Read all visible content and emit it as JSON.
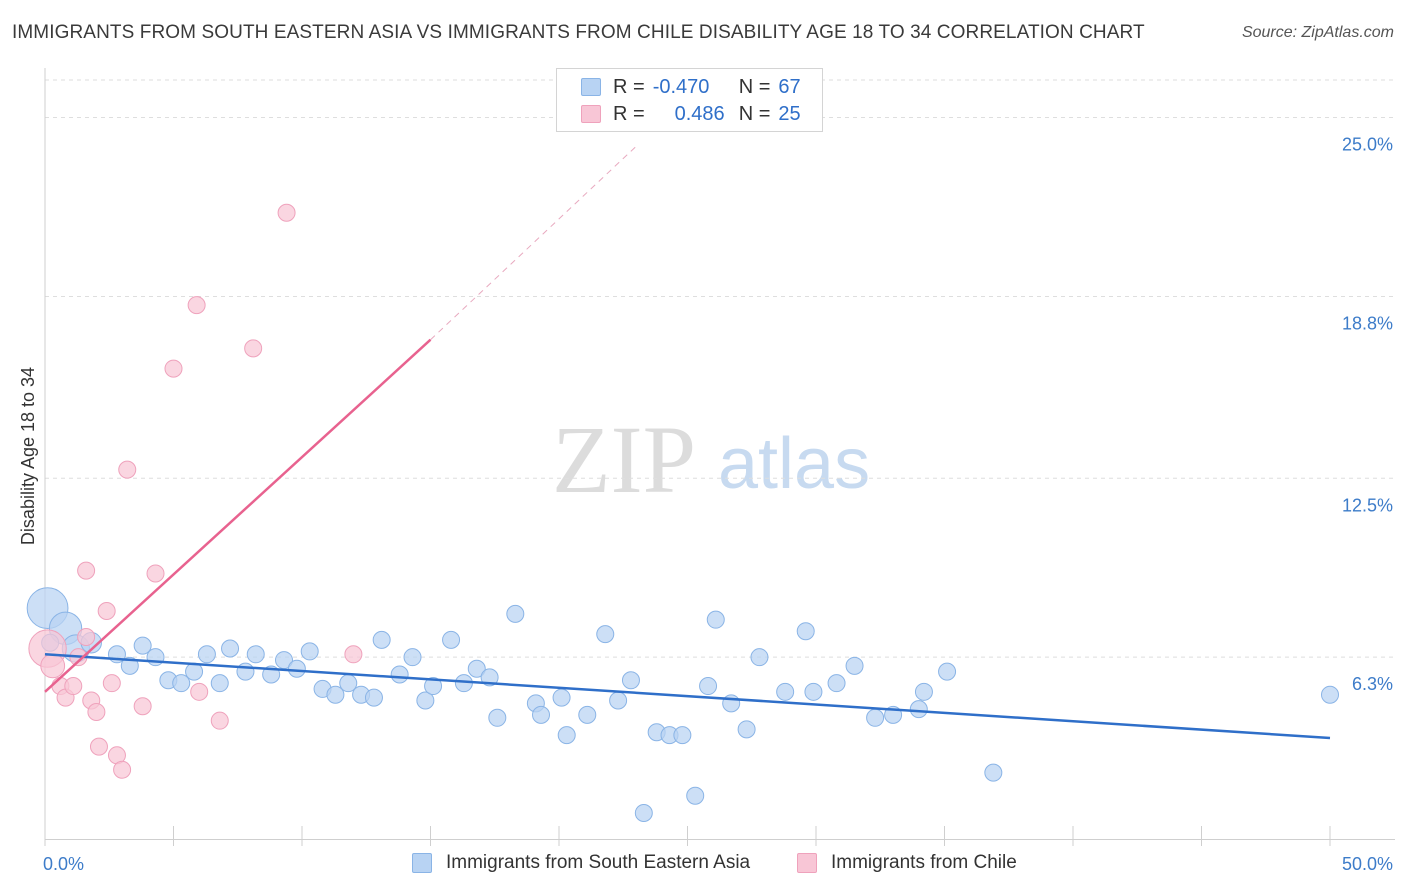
{
  "title": "IMMIGRANTS FROM SOUTH EASTERN ASIA VS IMMIGRANTS FROM CHILE DISABILITY AGE 18 TO 34 CORRELATION CHART",
  "source": "Source: ZipAtlas.com",
  "watermark": {
    "zip": "ZIP",
    "atlas": "atlas"
  },
  "legend": {
    "rows": [
      {
        "r_label": "R =",
        "r_value": "-0.470",
        "n_label": "N =",
        "n_value": "67"
      },
      {
        "r_label": "R =",
        "r_value": "0.486",
        "n_label": "N =",
        "n_value": "25"
      }
    ]
  },
  "colors": {
    "series1_fill": "#b8d3f3",
    "series1_stroke": "#8ab4e6",
    "series1_line": "#2f6fc9",
    "series2_fill": "#f8c6d6",
    "series2_stroke": "#efa2bc",
    "series2_line": "#e8628f",
    "grid": "#dedede",
    "axis_label": "#3d7cc9"
  },
  "chart_data": {
    "type": "scatter",
    "title": "IMMIGRANTS FROM SOUTH EASTERN ASIA VS IMMIGRANTS FROM CHILE DISABILITY AGE 18 TO 34 CORRELATION CHART",
    "xlabel": "",
    "ylabel": "Disability Age 18 to 34",
    "xlim": [
      0,
      50
    ],
    "ylim": [
      0,
      26.3
    ],
    "x_tick_labels": [
      "0.0%",
      "50.0%"
    ],
    "y_ticks": [
      6.3,
      12.5,
      18.8,
      25.0
    ],
    "y_tick_labels": [
      "6.3%",
      "12.5%",
      "18.8%",
      "25.0%"
    ],
    "grid": true,
    "legend_placement": "bottom",
    "series": [
      {
        "name": "Immigrants from South Eastern Asia",
        "R": -0.47,
        "N": 67,
        "trend": {
          "x": [
            0,
            50
          ],
          "y": [
            6.4,
            3.5
          ]
        },
        "points": [
          [
            0.1,
            8.0,
            2.4
          ],
          [
            0.8,
            7.3,
            1.9
          ],
          [
            1.2,
            6.6,
            1.6
          ],
          [
            1.8,
            6.8,
            1.2
          ],
          [
            2.8,
            6.4,
            1
          ],
          [
            3.3,
            6.0,
            1
          ],
          [
            3.8,
            6.7,
            1
          ],
          [
            4.3,
            6.3,
            1
          ],
          [
            4.8,
            5.5,
            1
          ],
          [
            5.3,
            5.4,
            1
          ],
          [
            5.8,
            5.8,
            1
          ],
          [
            6.3,
            6.4,
            1
          ],
          [
            6.8,
            5.4,
            1
          ],
          [
            7.2,
            6.6,
            1
          ],
          [
            7.8,
            5.8,
            1
          ],
          [
            8.2,
            6.4,
            1
          ],
          [
            8.8,
            5.7,
            1
          ],
          [
            9.3,
            6.2,
            1
          ],
          [
            9.8,
            5.9,
            1
          ],
          [
            10.3,
            6.5,
            1
          ],
          [
            10.8,
            5.2,
            1
          ],
          [
            11.3,
            5.0,
            1
          ],
          [
            11.8,
            5.4,
            1
          ],
          [
            12.3,
            5.0,
            1
          ],
          [
            12.8,
            4.9,
            1
          ],
          [
            13.1,
            6.9,
            1
          ],
          [
            13.8,
            5.7,
            1
          ],
          [
            14.3,
            6.3,
            1
          ],
          [
            14.8,
            4.8,
            1
          ],
          [
            15.1,
            5.3,
            1
          ],
          [
            15.8,
            6.9,
            1
          ],
          [
            16.3,
            5.4,
            1
          ],
          [
            16.8,
            5.9,
            1
          ],
          [
            17.3,
            5.6,
            1
          ],
          [
            17.6,
            4.2,
            1
          ],
          [
            18.3,
            7.8,
            1
          ],
          [
            19.1,
            4.7,
            1
          ],
          [
            19.3,
            4.3,
            1
          ],
          [
            20.1,
            4.9,
            1
          ],
          [
            20.3,
            3.6,
            1
          ],
          [
            21.1,
            4.3,
            1
          ],
          [
            21.8,
            7.1,
            1
          ],
          [
            22.3,
            4.8,
            1
          ],
          [
            22.8,
            5.5,
            1
          ],
          [
            23.3,
            0.9,
            1
          ],
          [
            23.8,
            3.7,
            1
          ],
          [
            24.3,
            3.6,
            1
          ],
          [
            24.8,
            3.6,
            1
          ],
          [
            25.3,
            1.5,
            1
          ],
          [
            25.8,
            5.3,
            1
          ],
          [
            26.1,
            7.6,
            1
          ],
          [
            26.7,
            4.7,
            1
          ],
          [
            27.3,
            3.8,
            1
          ],
          [
            27.8,
            6.3,
            1
          ],
          [
            28.8,
            5.1,
            1
          ],
          [
            29.6,
            7.2,
            1
          ],
          [
            29.9,
            5.1,
            1
          ],
          [
            30.8,
            5.4,
            1
          ],
          [
            31.5,
            6.0,
            1
          ],
          [
            32.3,
            4.2,
            1
          ],
          [
            33.0,
            4.3,
            1
          ],
          [
            34.0,
            4.5,
            1
          ],
          [
            34.2,
            5.1,
            1
          ],
          [
            35.1,
            5.8,
            1
          ],
          [
            36.9,
            2.3,
            1
          ],
          [
            50.0,
            5.0,
            1
          ],
          [
            0.2,
            6.8,
            1
          ]
        ]
      },
      {
        "name": "Immigrants from Chile",
        "R": 0.486,
        "N": 25,
        "trend": {
          "x": [
            0,
            15
          ],
          "y": [
            5.1,
            17.3
          ]
        },
        "trend_extension": {
          "x": [
            15,
            23
          ],
          "y": [
            17.3,
            24.0
          ]
        },
        "points": [
          [
            0.1,
            6.6,
            2.2
          ],
          [
            0.3,
            6.0,
            1.4
          ],
          [
            0.6,
            5.3,
            1
          ],
          [
            0.8,
            4.9,
            1
          ],
          [
            1.1,
            5.3,
            1
          ],
          [
            1.3,
            6.3,
            1
          ],
          [
            1.6,
            7.0,
            1
          ],
          [
            1.6,
            9.3,
            1
          ],
          [
            1.8,
            4.8,
            1
          ],
          [
            2.0,
            4.4,
            1
          ],
          [
            2.1,
            3.2,
            1
          ],
          [
            2.4,
            7.9,
            1
          ],
          [
            2.6,
            5.4,
            1
          ],
          [
            2.8,
            2.9,
            1
          ],
          [
            3.0,
            2.4,
            1
          ],
          [
            3.2,
            12.8,
            1
          ],
          [
            3.8,
            4.6,
            1
          ],
          [
            4.3,
            9.2,
            1
          ],
          [
            5.0,
            16.3,
            1
          ],
          [
            5.9,
            18.5,
            1
          ],
          [
            6.0,
            5.1,
            1
          ],
          [
            6.8,
            4.1,
            1
          ],
          [
            8.1,
            17.0,
            1
          ],
          [
            9.4,
            21.7,
            1
          ],
          [
            12.0,
            6.4,
            1
          ]
        ]
      }
    ]
  }
}
